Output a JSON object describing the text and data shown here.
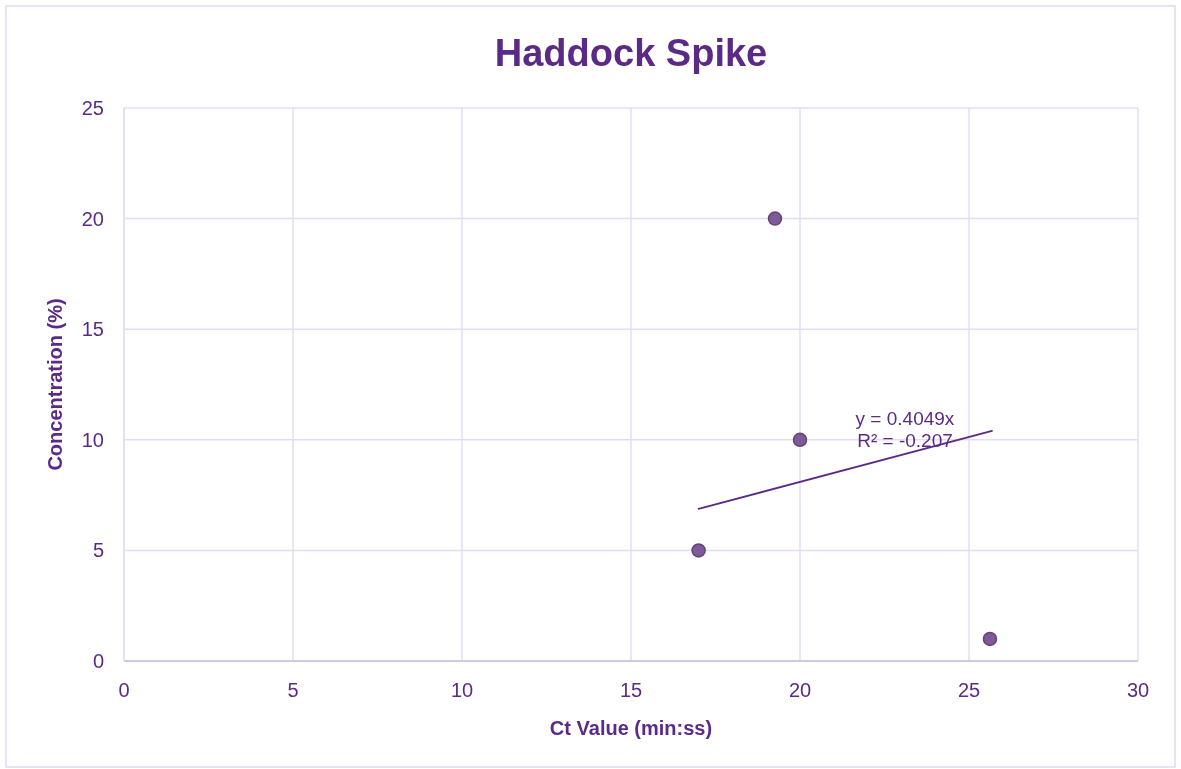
{
  "chart_data": {
    "type": "scatter",
    "title": "Haddock Spike",
    "xlabel": "Ct Value (min:ss)",
    "ylabel": "Concentration (%)",
    "xlim": [
      0,
      30
    ],
    "xticks": [
      0,
      5,
      10,
      15,
      20,
      25,
      30
    ],
    "ylim": [
      0,
      25
    ],
    "yticks": [
      0,
      5,
      10,
      15,
      20,
      25
    ],
    "grid": true,
    "marker": "circle",
    "series": [
      {
        "color": "#7e5a9b",
        "x": [
          17,
          19.26,
          20,
          25.62
        ],
        "values": [
          5,
          20,
          10,
          1
        ]
      },
      {
        "type": "line",
        "color": "#5b2a86",
        "x": [
          17,
          25.68
        ],
        "values": [
          6.88,
          10.4
        ],
        "marker": "none",
        "line_style": "solid"
      }
    ],
    "annotations": [
      "y = 0.4049x",
      "R² = -0.207"
    ]
  }
}
